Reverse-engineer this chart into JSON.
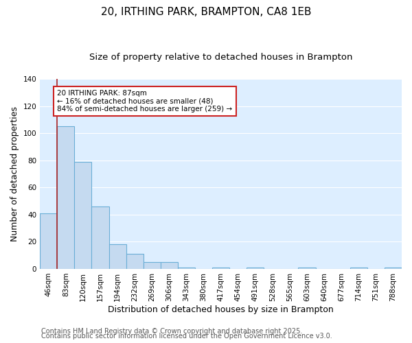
{
  "title1": "20, IRTHING PARK, BRAMPTON, CA8 1EB",
  "title2": "Size of property relative to detached houses in Brampton",
  "xlabel": "Distribution of detached houses by size in Brampton",
  "ylabel": "Number of detached properties",
  "categories": [
    "46sqm",
    "83sqm",
    "120sqm",
    "157sqm",
    "194sqm",
    "232sqm",
    "269sqm",
    "306sqm",
    "343sqm",
    "380sqm",
    "417sqm",
    "454sqm",
    "491sqm",
    "528sqm",
    "565sqm",
    "603sqm",
    "640sqm",
    "677sqm",
    "714sqm",
    "751sqm",
    "788sqm"
  ],
  "values": [
    41,
    105,
    79,
    46,
    18,
    11,
    5,
    5,
    1,
    0,
    1,
    0,
    1,
    0,
    0,
    1,
    0,
    0,
    1,
    0,
    1
  ],
  "bar_color": "#c5daf0",
  "bar_edge_color": "#6aaed6",
  "bar_linewidth": 0.8,
  "vline_x": 1,
  "vline_color": "#aa2222",
  "annotation_text": "20 IRTHING PARK: 87sqm\n← 16% of detached houses are smaller (48)\n84% of semi-detached houses are larger (259) →",
  "annotation_box_color": "#ffffff",
  "annotation_box_edge_color": "#cc2222",
  "ylim": [
    0,
    140
  ],
  "yticks": [
    0,
    20,
    40,
    60,
    80,
    100,
    120,
    140
  ],
  "fig_background_color": "#ffffff",
  "plot_background_color": "#ddeeff",
  "grid_color": "#ffffff",
  "footer1": "Contains HM Land Registry data © Crown copyright and database right 2025.",
  "footer2": "Contains public sector information licensed under the Open Government Licence v3.0.",
  "title_fontsize": 11,
  "subtitle_fontsize": 9.5,
  "axis_label_fontsize": 9,
  "tick_fontsize": 7.5,
  "annotation_fontsize": 7.5,
  "footer_fontsize": 7
}
